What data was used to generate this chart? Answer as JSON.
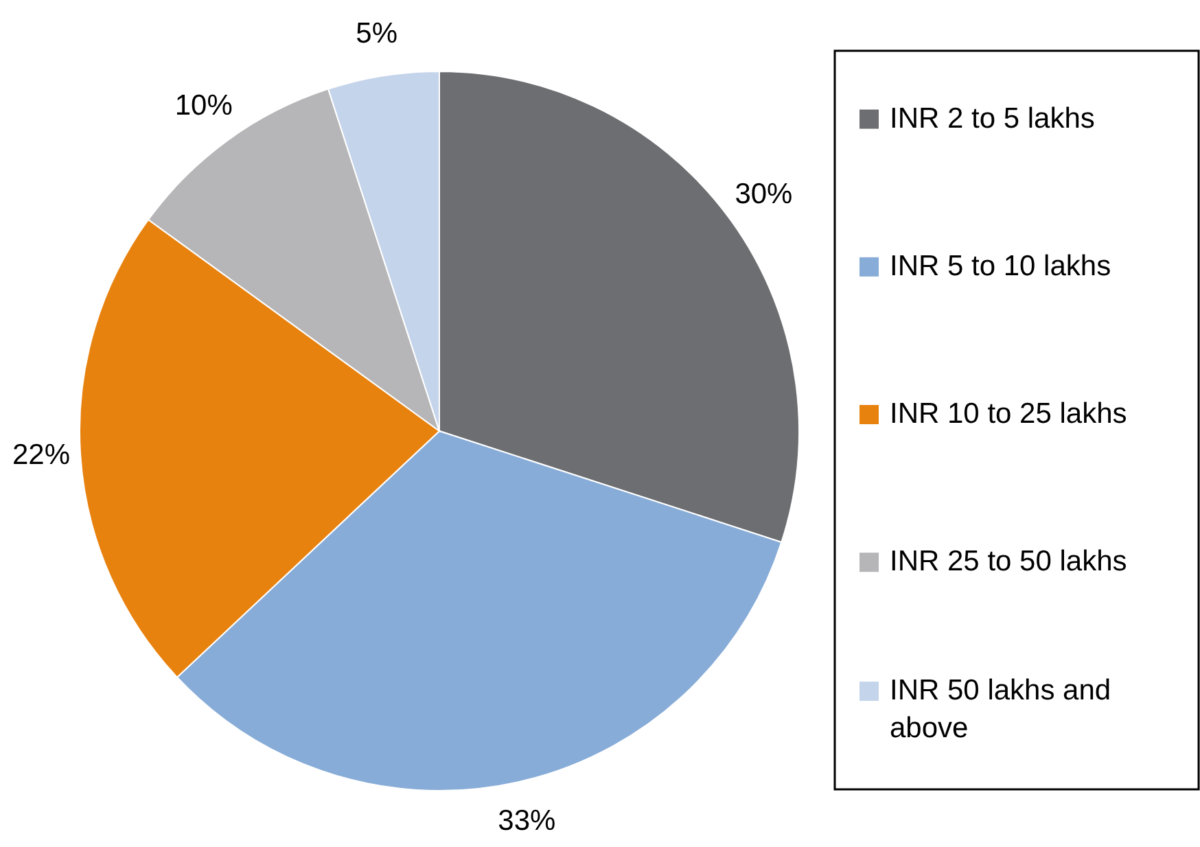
{
  "chart_data": {
    "type": "pie",
    "categories": [
      "INR 2 to 5 lakhs",
      "INR 5 to 10 lakhs",
      "INR 10 to 25 lakhs",
      "INR 25 to 50 lakhs",
      "INR 50 lakhs and above"
    ],
    "values": [
      30,
      33,
      22,
      10,
      5
    ],
    "colors": [
      "#6d6e71",
      "#88acd8",
      "#e8820f",
      "#b6b6b8",
      "#c4d4ea"
    ],
    "value_labels": [
      "30%",
      "33%",
      "22%",
      "10%",
      "5%"
    ],
    "legend": "right"
  }
}
